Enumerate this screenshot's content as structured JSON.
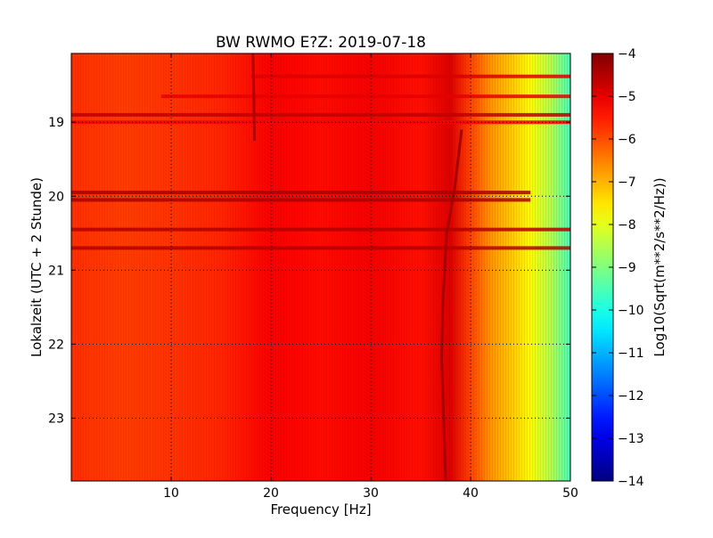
{
  "chart_data": {
    "type": "heatmap",
    "title": "BW RWMO E?Z: 2019-07-18",
    "xlabel": "Frequency [Hz]",
    "ylabel": "Lokalzeit (UTC + 2 Stunde)",
    "colorbar_label": "Log10(Sqrt(m**2/s**2/Hz))",
    "xlim": [
      0,
      50
    ],
    "ylim": [
      18.07,
      23.85
    ],
    "y_inverted": true,
    "x_ticks": [
      10,
      20,
      30,
      40,
      50
    ],
    "y_ticks": [
      19,
      20,
      21,
      22,
      23
    ],
    "grid": true,
    "colormap": "jet",
    "colorbar": {
      "min": -14,
      "max": -4,
      "ticks": [
        -4,
        -5,
        -6,
        -7,
        -8,
        -9,
        -10,
        -11,
        -12,
        -13,
        -14
      ]
    },
    "spectral_profile": {
      "frequency_hz": [
        0,
        5,
        10,
        15,
        20,
        25,
        30,
        35,
        38,
        40,
        42,
        44,
        46,
        48,
        50
      ],
      "log10_amplitude": [
        -5.7,
        -5.85,
        -5.75,
        -5.6,
        -5.2,
        -5.35,
        -5.15,
        -5.4,
        -4.9,
        -5.9,
        -6.7,
        -7.2,
        -7.8,
        -8.5,
        -9.6
      ]
    },
    "horizontal_bands": [
      {
        "time": 18.38,
        "f_start": 18,
        "f_end": 50,
        "log10_amplitude": -4.9
      },
      {
        "time": 18.65,
        "f_start": 9,
        "f_end": 50,
        "log10_amplitude": -5.0
      },
      {
        "time": 18.9,
        "f_start": 0,
        "f_end": 50,
        "log10_amplitude": -4.6
      },
      {
        "time": 19.0,
        "f_start": 0,
        "f_end": 50,
        "log10_amplitude": -5.2
      },
      {
        "time": 19.95,
        "f_start": 0,
        "f_end": 46,
        "log10_amplitude": -4.4
      },
      {
        "time": 20.05,
        "f_start": 0,
        "f_end": 46,
        "log10_amplitude": -4.4
      },
      {
        "time": 20.45,
        "f_start": 0,
        "f_end": 50,
        "log10_amplitude": -4.5
      },
      {
        "time": 20.7,
        "f_start": 0,
        "f_end": 50,
        "log10_amplitude": -4.5
      }
    ],
    "traces": [
      {
        "frequency_hz": [
          18.2,
          18.3,
          18.35
        ],
        "time": [
          18.07,
          18.7,
          19.25
        ],
        "log10_amplitude": -4.5
      },
      {
        "frequency_hz": [
          39.1,
          38.4,
          37.6,
          37.2,
          37.1,
          37.3,
          37.5
        ],
        "time": [
          19.1,
          19.9,
          20.5,
          21.5,
          22.2,
          23.0,
          23.85
        ],
        "log10_amplitude": -4.4
      }
    ]
  }
}
